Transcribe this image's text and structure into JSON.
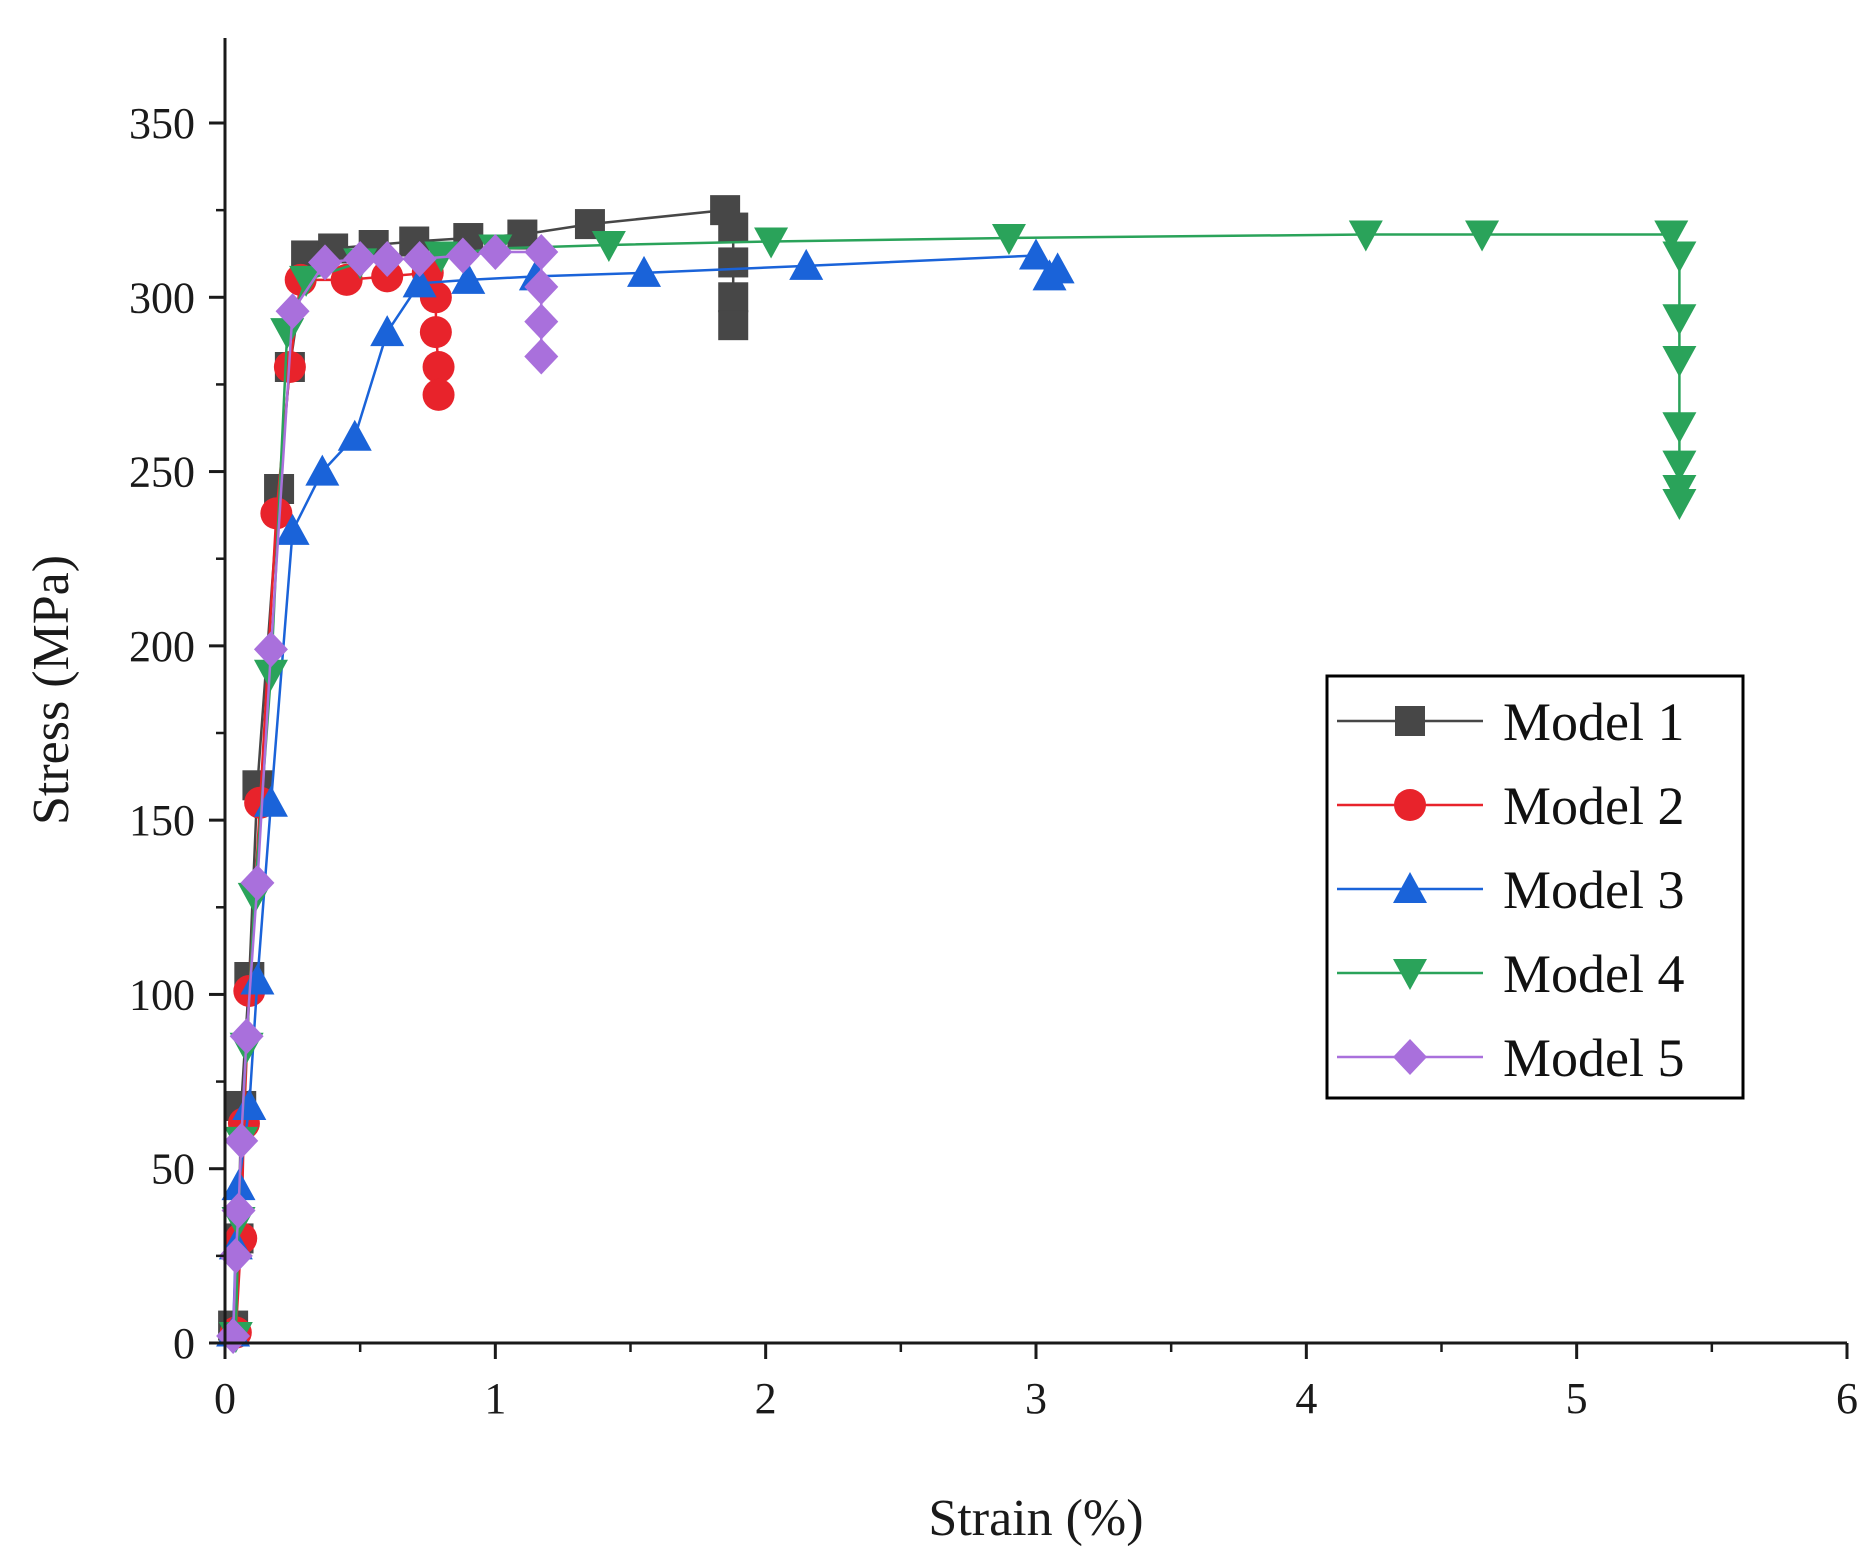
{
  "chart_data": {
    "type": "line",
    "title": "",
    "xlabel": "Strain (%)",
    "ylabel": "Stress (MPa)",
    "xlim": [
      0,
      6
    ],
    "ylim": [
      0,
      375
    ],
    "xticks": [
      0,
      1,
      2,
      3,
      4,
      5,
      6
    ],
    "yticks": [
      0,
      50,
      100,
      150,
      200,
      250,
      300,
      350
    ],
    "legend_position": "center-right",
    "series": [
      {
        "name": "Model 1",
        "color": "#474747",
        "marker": "square",
        "points": [
          [
            0.03,
            5
          ],
          [
            0.05,
            30
          ],
          [
            0.06,
            68
          ],
          [
            0.09,
            105
          ],
          [
            0.12,
            160
          ],
          [
            0.2,
            245
          ],
          [
            0.24,
            280
          ],
          [
            0.3,
            312
          ],
          [
            0.4,
            314
          ],
          [
            0.55,
            315
          ],
          [
            0.7,
            316
          ],
          [
            0.9,
            317
          ],
          [
            1.1,
            318
          ],
          [
            1.35,
            321
          ],
          [
            1.85,
            325
          ],
          [
            1.88,
            320
          ],
          [
            1.88,
            310
          ],
          [
            1.88,
            300
          ],
          [
            1.88,
            292
          ]
        ]
      },
      {
        "name": "Model 2",
        "color": "#e8232b",
        "marker": "circle",
        "points": [
          [
            0.04,
            3
          ],
          [
            0.06,
            30
          ],
          [
            0.07,
            63
          ],
          [
            0.09,
            101
          ],
          [
            0.13,
            155
          ],
          [
            0.19,
            238
          ],
          [
            0.24,
            280
          ],
          [
            0.28,
            305
          ],
          [
            0.45,
            305
          ],
          [
            0.6,
            306
          ],
          [
            0.75,
            307
          ],
          [
            0.78,
            300
          ],
          [
            0.78,
            290
          ],
          [
            0.79,
            280
          ],
          [
            0.79,
            272
          ]
        ]
      },
      {
        "name": "Model 3",
        "color": "#1a63d9",
        "marker": "triangle-up",
        "points": [
          [
            0.03,
            3
          ],
          [
            0.04,
            28
          ],
          [
            0.05,
            45
          ],
          [
            0.09,
            68
          ],
          [
            0.12,
            104
          ],
          [
            0.17,
            155
          ],
          [
            0.25,
            233
          ],
          [
            0.36,
            250
          ],
          [
            0.48,
            260
          ],
          [
            0.6,
            290
          ],
          [
            0.72,
            304
          ],
          [
            0.9,
            305
          ],
          [
            1.15,
            306
          ],
          [
            1.55,
            307
          ],
          [
            2.15,
            309
          ],
          [
            3.0,
            312
          ],
          [
            3.05,
            306
          ],
          [
            3.08,
            308
          ]
        ]
      },
      {
        "name": "Model 4",
        "color": "#2aa35a",
        "marker": "triangle-down",
        "points": [
          [
            0.04,
            2
          ],
          [
            0.05,
            35
          ],
          [
            0.06,
            58
          ],
          [
            0.08,
            85
          ],
          [
            0.11,
            128
          ],
          [
            0.17,
            192
          ],
          [
            0.23,
            290
          ],
          [
            0.3,
            305
          ],
          [
            0.5,
            310
          ],
          [
            0.8,
            312
          ],
          [
            1.0,
            314
          ],
          [
            1.42,
            315
          ],
          [
            2.02,
            316
          ],
          [
            2.9,
            317
          ],
          [
            4.22,
            318
          ],
          [
            4.65,
            318
          ],
          [
            5.35,
            318
          ],
          [
            5.38,
            312
          ],
          [
            5.38,
            294
          ],
          [
            5.38,
            282
          ],
          [
            5.38,
            263
          ],
          [
            5.38,
            252
          ],
          [
            5.38,
            245
          ],
          [
            5.38,
            241
          ]
        ]
      },
      {
        "name": "Model 5",
        "color": "#a970dc",
        "marker": "diamond",
        "points": [
          [
            0.03,
            2
          ],
          [
            0.04,
            25
          ],
          [
            0.05,
            38
          ],
          [
            0.06,
            58
          ],
          [
            0.08,
            88
          ],
          [
            0.12,
            132
          ],
          [
            0.17,
            199
          ],
          [
            0.25,
            296
          ],
          [
            0.37,
            310
          ],
          [
            0.5,
            311
          ],
          [
            0.6,
            311
          ],
          [
            0.72,
            311
          ],
          [
            0.88,
            312
          ],
          [
            1.0,
            313
          ],
          [
            1.17,
            313
          ],
          [
            1.17,
            303
          ],
          [
            1.17,
            293
          ],
          [
            1.17,
            283
          ]
        ]
      }
    ]
  }
}
